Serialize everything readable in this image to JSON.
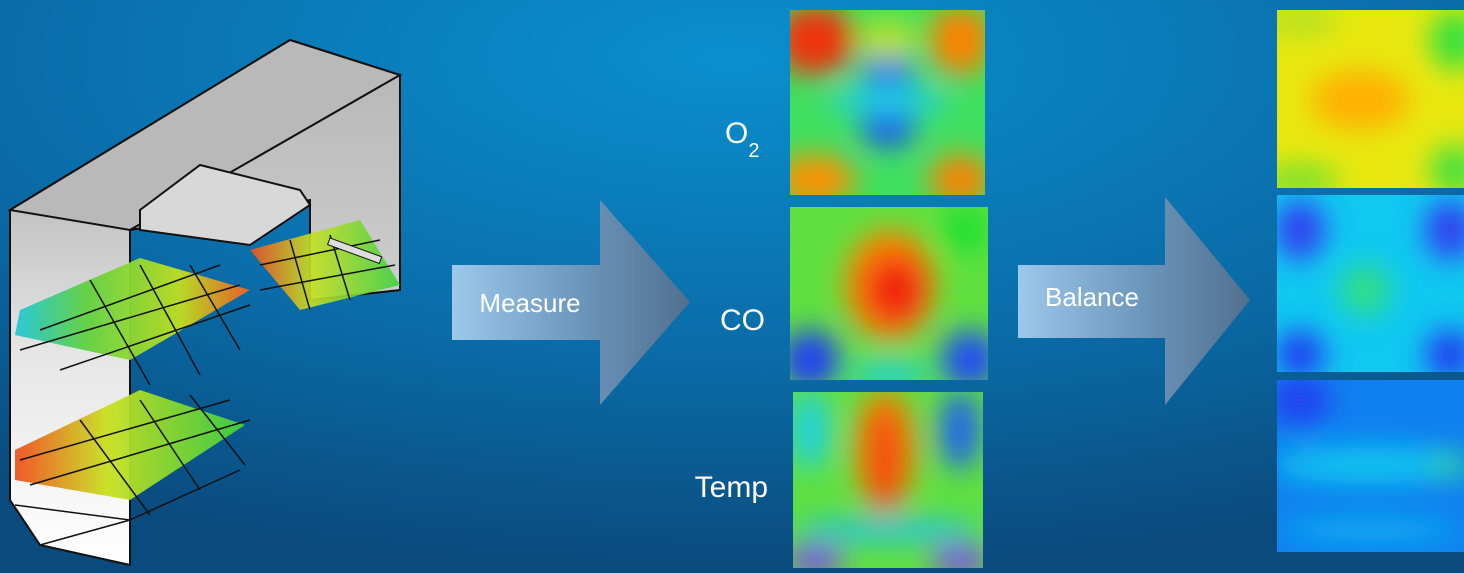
{
  "process": {
    "step1": {
      "label": "Measure"
    },
    "maps": [
      {
        "label": "O",
        "subscript": "2"
      },
      {
        "label": "CO"
      },
      {
        "label": "Temp"
      }
    ],
    "step2": {
      "label": "Balance"
    }
  }
}
